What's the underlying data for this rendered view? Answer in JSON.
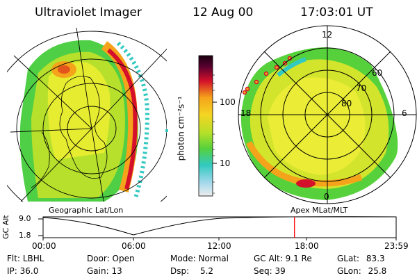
{
  "header": {
    "instrument": "Ultraviolet Imager",
    "date": "12 Aug 00",
    "time": "17:03:01 UT"
  },
  "colorbar": {
    "unit_label": "photon cm⁻²s⁻¹",
    "ticks": [
      "100",
      "10"
    ]
  },
  "geo_map": {
    "label": "Geographic Lat/Lon"
  },
  "polar_map": {
    "label": "Apex MLat/MLT",
    "mlt_labels": [
      "12",
      "18",
      "6",
      "0"
    ],
    "lat_labels": [
      "60",
      "70",
      "80"
    ]
  },
  "orbit_plot": {
    "ylabel": "GC Alt",
    "yticks": [
      "9.0",
      "1.8"
    ],
    "xticks": [
      "00:00",
      "06:00",
      "12:00",
      "18:00",
      "23:59"
    ],
    "marker_time_fraction": 0.712
  },
  "info": {
    "row1": [
      {
        "key": "Flt:",
        "value": "LBHL"
      },
      {
        "key": "Door:",
        "value": "Open"
      },
      {
        "key": "Mode:",
        "value": "Normal"
      },
      {
        "key": "GC Alt:",
        "value": "9.1 Re"
      },
      {
        "key": "GLat:",
        "value": "83.3"
      }
    ],
    "row2": [
      {
        "key": "IP:",
        "value": "36.0"
      },
      {
        "key": "Gain:",
        "value": "13"
      },
      {
        "key": "Dsp:",
        "value": "5.2"
      },
      {
        "key": "Seq:",
        "value": "39"
      },
      {
        "key": "GLon:",
        "value": "25.8"
      }
    ]
  },
  "colors": {
    "bar_top": "#1a0010",
    "bar_red": "#d4102a",
    "bar_orange": "#f5a31a",
    "bar_yellow": "#e8ec23",
    "bar_green": "#57d13b",
    "bar_cyan": "#31c9c0",
    "bar_low": "#e9e9f0",
    "marker": "#ff0000"
  }
}
